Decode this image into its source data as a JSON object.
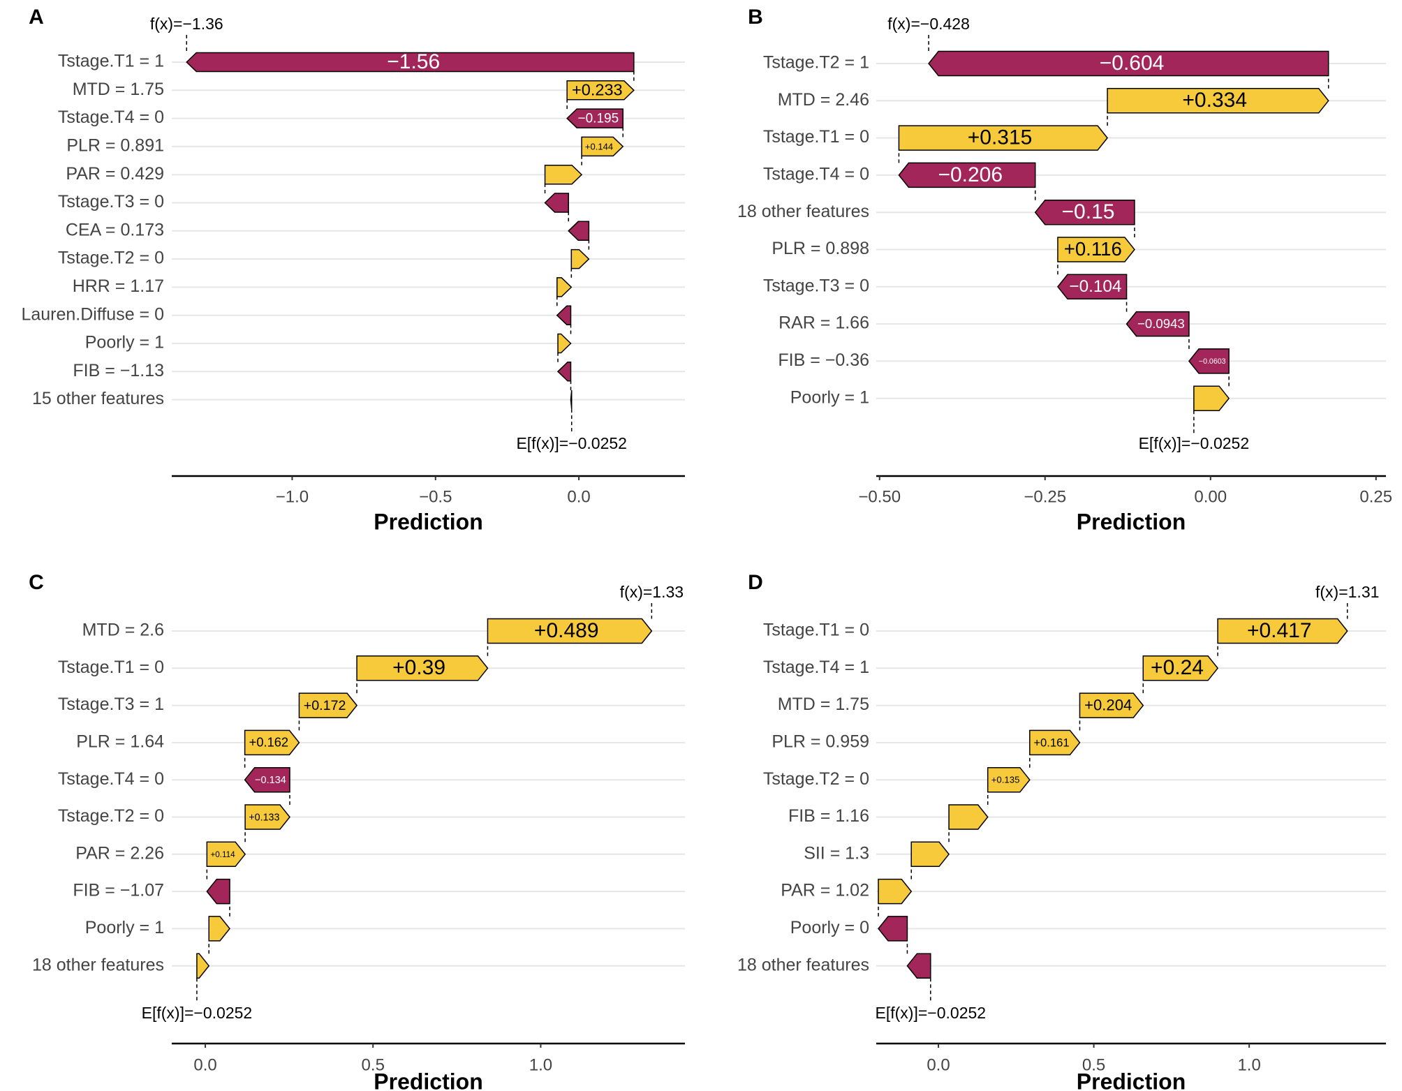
{
  "colors": {
    "positive": "#f6ca3a",
    "negative": "#a3265a",
    "outline": "#000000",
    "grid": "#e6e6e6"
  },
  "chart_data": [
    {
      "panel": "A",
      "type": "waterfall",
      "xlabel": "Prediction",
      "xlim": [
        -1.42,
        0.37
      ],
      "xticks": [
        -1.0,
        -0.5,
        0.0
      ],
      "xtick_labels": [
        "−1.0",
        "−0.5",
        "0.0"
      ],
      "fx_label": "f(x)=−1.36",
      "efx_label": "E[f(x)]=−0.0252",
      "base": -0.0252,
      "features": [
        {
          "label": "Tstage.T1 = 1",
          "value": -1.56,
          "text": "−1.56"
        },
        {
          "label": "MTD = 1.75",
          "value": 0.233,
          "text": "+0.233"
        },
        {
          "label": "Tstage.T4 = 0",
          "value": -0.195,
          "text": "−0.195"
        },
        {
          "label": "PLR = 0.891",
          "value": 0.144,
          "text": "+0.144"
        },
        {
          "label": "PAR = 0.429",
          "value": 0.128,
          "text": ""
        },
        {
          "label": "Tstage.T3 = 0",
          "value": -0.082,
          "text": ""
        },
        {
          "label": "CEA = 0.173",
          "value": -0.071,
          "text": ""
        },
        {
          "label": "Tstage.T2 = 0",
          "value": 0.061,
          "text": ""
        },
        {
          "label": "HRR = 1.17",
          "value": 0.05,
          "text": ""
        },
        {
          "label": "Lauren.Diffuse = 0",
          "value": -0.048,
          "text": ""
        },
        {
          "label": "Poorly = 1",
          "value": 0.045,
          "text": ""
        },
        {
          "label": "FIB = −1.13",
          "value": -0.045,
          "text": ""
        },
        {
          "label": "15 other features",
          "value": -0.003,
          "text": ""
        }
      ]
    },
    {
      "panel": "B",
      "type": "waterfall",
      "xlabel": "Prediction",
      "xlim": [
        -0.505,
        0.265
      ],
      "xticks": [
        -0.5,
        -0.25,
        0.0,
        0.25
      ],
      "xtick_labels": [
        "−0.50",
        "−0.25",
        "0.00",
        "0.25"
      ],
      "fx_label": "f(x)=−0.428",
      "efx_label": "E[f(x)]=−0.0252",
      "base": -0.0252,
      "features": [
        {
          "label": "Tstage.T2 = 1",
          "value": -0.604,
          "text": "−0.604"
        },
        {
          "label": "MTD = 2.46",
          "value": 0.334,
          "text": "+0.334"
        },
        {
          "label": "Tstage.T1 = 0",
          "value": 0.315,
          "text": "+0.315"
        },
        {
          "label": "Tstage.T4 = 0",
          "value": -0.206,
          "text": "−0.206"
        },
        {
          "label": "18 other features",
          "value": -0.15,
          "text": "−0.15"
        },
        {
          "label": "PLR = 0.898",
          "value": 0.116,
          "text": "+0.116"
        },
        {
          "label": "Tstage.T3 = 0",
          "value": -0.104,
          "text": "−0.104"
        },
        {
          "label": "RAR = 1.66",
          "value": -0.0943,
          "text": "−0.0943"
        },
        {
          "label": "FIB = −0.36",
          "value": -0.0603,
          "text": "−0.0603"
        },
        {
          "label": "Poorly = 1",
          "value": 0.053,
          "text": ""
        }
      ]
    },
    {
      "panel": "C",
      "type": "waterfall",
      "xlabel": "Prediction",
      "xlim": [
        -0.1,
        1.43
      ],
      "xticks": [
        0.0,
        0.5,
        1.0
      ],
      "xtick_labels": [
        "0.0",
        "0.5",
        "1.0"
      ],
      "fx_label": "f(x)=1.33",
      "efx_label": "E[f(x)]=−0.0252",
      "base": -0.0252,
      "features": [
        {
          "label": "MTD = 2.6",
          "value": 0.489,
          "text": "+0.489"
        },
        {
          "label": "Tstage.T1 = 0",
          "value": 0.39,
          "text": "+0.39"
        },
        {
          "label": "Tstage.T3 = 1",
          "value": 0.172,
          "text": "+0.172"
        },
        {
          "label": "PLR = 1.64",
          "value": 0.162,
          "text": "+0.162"
        },
        {
          "label": "Tstage.T4 = 0",
          "value": -0.134,
          "text": "−0.134"
        },
        {
          "label": "Tstage.T2 = 0",
          "value": 0.133,
          "text": "+0.133"
        },
        {
          "label": "PAR = 2.26",
          "value": 0.114,
          "text": "+0.114"
        },
        {
          "label": "FIB = −1.07",
          "value": -0.068,
          "text": ""
        },
        {
          "label": "Poorly = 1",
          "value": 0.062,
          "text": ""
        },
        {
          "label": "18 other features",
          "value": 0.036,
          "text": ""
        }
      ]
    },
    {
      "panel": "D",
      "type": "waterfall",
      "xlabel": "Prediction",
      "xlim": [
        -0.2,
        1.44
      ],
      "xticks": [
        0.0,
        0.5,
        1.0
      ],
      "xtick_labels": [
        "0.0",
        "0.5",
        "1.0"
      ],
      "fx_label": "f(x)=1.31",
      "efx_label": "E[f(x)]=−0.0252",
      "base": -0.0252,
      "features": [
        {
          "label": "Tstage.T1 = 0",
          "value": 0.417,
          "text": "+0.417"
        },
        {
          "label": "Tstage.T4 = 1",
          "value": 0.24,
          "text": "+0.24"
        },
        {
          "label": "MTD = 1.75",
          "value": 0.204,
          "text": "+0.204"
        },
        {
          "label": "PLR = 0.959",
          "value": 0.161,
          "text": "+0.161"
        },
        {
          "label": "Tstage.T2 = 0",
          "value": 0.135,
          "text": "+0.135"
        },
        {
          "label": "FIB = 1.16",
          "value": 0.125,
          "text": ""
        },
        {
          "label": "SII = 1.3",
          "value": 0.121,
          "text": ""
        },
        {
          "label": "PAR = 1.02",
          "value": 0.106,
          "text": ""
        },
        {
          "label": "Poorly = 0",
          "value": -0.093,
          "text": ""
        },
        {
          "label": "18 other features",
          "value": -0.075,
          "text": ""
        }
      ]
    }
  ]
}
